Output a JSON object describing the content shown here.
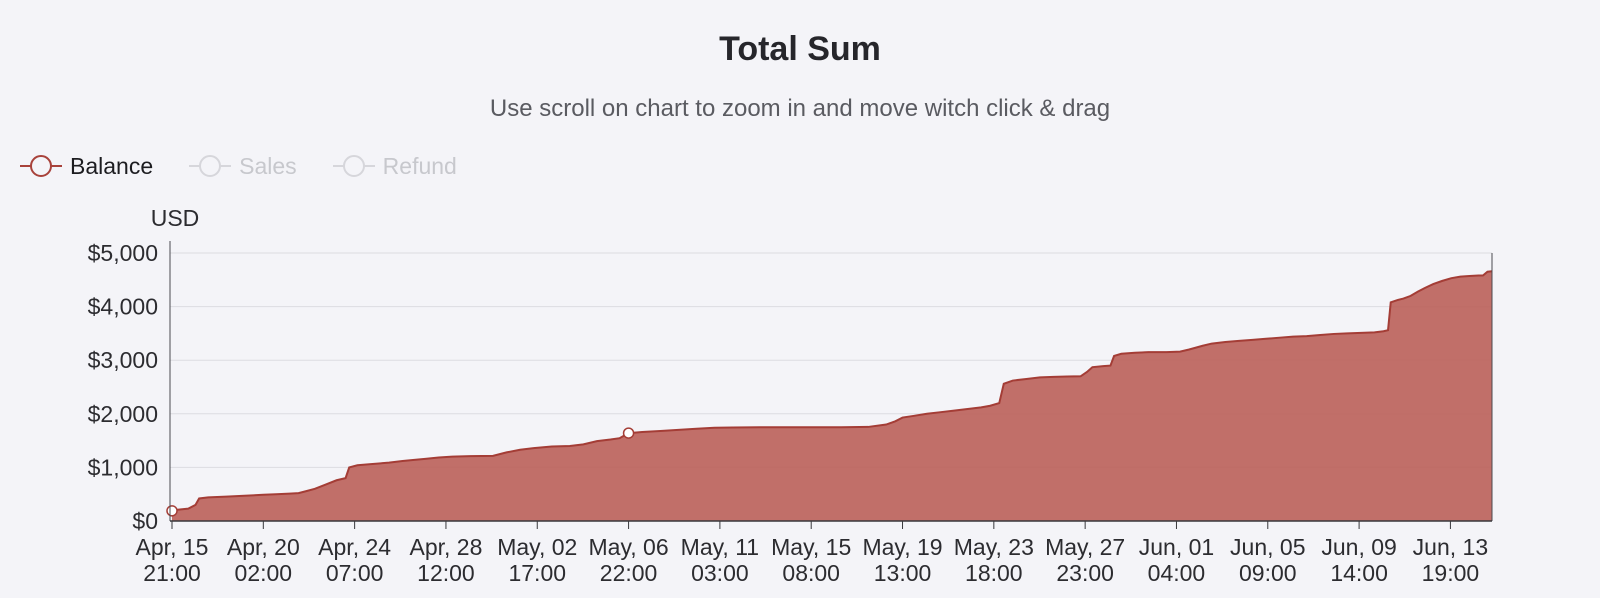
{
  "title": "Total Sum",
  "subtitle": "Use scroll on chart to zoom in and move witch click & drag",
  "legend": {
    "items": [
      {
        "label": "Balance",
        "active": true
      },
      {
        "label": "Sales",
        "active": false
      },
      {
        "label": "Refund",
        "active": false
      }
    ],
    "active_marker_color": "#a8423b",
    "inactive_marker_color": "#d6d6db",
    "marker_fill": "#f4f4f8"
  },
  "axis": {
    "y_title": "USD"
  },
  "colors": {
    "background": "#f4f4f8",
    "area_fill": "#bc635c",
    "line_stroke": "#a43d36",
    "grid": "#dcdce1",
    "axis_line": "#4a4a4f",
    "tick_text": "#2c2c30",
    "marker_fill": "#ffffff"
  },
  "chart_data": {
    "type": "area",
    "title": "Total Sum",
    "xlabel": "",
    "ylabel": "USD",
    "ylim": [
      0,
      5000
    ],
    "xlim_hours": [
      0,
      1460
    ],
    "grid": "horizontal",
    "legend_position": "top-left",
    "y_ticks": [
      {
        "value": 0,
        "label": "$0"
      },
      {
        "value": 1000,
        "label": "$1,000"
      },
      {
        "value": 2000,
        "label": "$2,000"
      },
      {
        "value": 3000,
        "label": "$3,000"
      },
      {
        "value": 4000,
        "label": "$4,000"
      },
      {
        "value": 5000,
        "label": "$5,000"
      }
    ],
    "x_ticks": [
      {
        "hour": 0,
        "label": "Apr, 15",
        "sub": "21:00"
      },
      {
        "hour": 101,
        "label": "Apr, 20",
        "sub": "02:00"
      },
      {
        "hour": 202,
        "label": "Apr, 24",
        "sub": "07:00"
      },
      {
        "hour": 303,
        "label": "Apr, 28",
        "sub": "12:00"
      },
      {
        "hour": 404,
        "label": "May, 02",
        "sub": "17:00"
      },
      {
        "hour": 505,
        "label": "May, 06",
        "sub": "22:00"
      },
      {
        "hour": 606,
        "label": "May, 11",
        "sub": "03:00"
      },
      {
        "hour": 707,
        "label": "May, 15",
        "sub": "08:00"
      },
      {
        "hour": 808,
        "label": "May, 19",
        "sub": "13:00"
      },
      {
        "hour": 909,
        "label": "May, 23",
        "sub": "18:00"
      },
      {
        "hour": 1010,
        "label": "May, 27",
        "sub": "23:00"
      },
      {
        "hour": 1111,
        "label": "Jun, 01",
        "sub": "04:00"
      },
      {
        "hour": 1212,
        "label": "Jun, 05",
        "sub": "09:00"
      },
      {
        "hour": 1313,
        "label": "Jun, 09",
        "sub": "14:00"
      },
      {
        "hour": 1414,
        "label": "Jun, 13",
        "sub": "19:00"
      }
    ],
    "series": [
      {
        "name": "Balance",
        "unit": "USD",
        "points": [
          [
            0,
            190
          ],
          [
            6,
            210
          ],
          [
            18,
            230
          ],
          [
            26,
            300
          ],
          [
            30,
            420
          ],
          [
            40,
            440
          ],
          [
            60,
            455
          ],
          [
            80,
            470
          ],
          [
            101,
            490
          ],
          [
            115,
            500
          ],
          [
            130,
            510
          ],
          [
            140,
            520
          ],
          [
            148,
            555
          ],
          [
            158,
            600
          ],
          [
            170,
            680
          ],
          [
            182,
            760
          ],
          [
            192,
            800
          ],
          [
            196,
            1000
          ],
          [
            205,
            1040
          ],
          [
            220,
            1060
          ],
          [
            240,
            1090
          ],
          [
            255,
            1120
          ],
          [
            268,
            1140
          ],
          [
            280,
            1160
          ],
          [
            295,
            1185
          ],
          [
            310,
            1200
          ],
          [
            330,
            1210
          ],
          [
            355,
            1215
          ],
          [
            370,
            1280
          ],
          [
            385,
            1330
          ],
          [
            400,
            1360
          ],
          [
            420,
            1390
          ],
          [
            440,
            1400
          ],
          [
            455,
            1430
          ],
          [
            470,
            1490
          ],
          [
            485,
            1520
          ],
          [
            495,
            1545
          ],
          [
            505,
            1640
          ],
          [
            520,
            1660
          ],
          [
            540,
            1680
          ],
          [
            560,
            1700
          ],
          [
            580,
            1720
          ],
          [
            600,
            1740
          ],
          [
            620,
            1745
          ],
          [
            650,
            1750
          ],
          [
            700,
            1750
          ],
          [
            740,
            1750
          ],
          [
            770,
            1755
          ],
          [
            790,
            1800
          ],
          [
            800,
            1860
          ],
          [
            808,
            1930
          ],
          [
            820,
            1960
          ],
          [
            835,
            2000
          ],
          [
            850,
            2030
          ],
          [
            865,
            2060
          ],
          [
            880,
            2090
          ],
          [
            895,
            2120
          ],
          [
            905,
            2150
          ],
          [
            915,
            2200
          ],
          [
            920,
            2560
          ],
          [
            930,
            2620
          ],
          [
            945,
            2650
          ],
          [
            960,
            2680
          ],
          [
            975,
            2690
          ],
          [
            990,
            2695
          ],
          [
            1005,
            2700
          ],
          [
            1012,
            2780
          ],
          [
            1018,
            2870
          ],
          [
            1030,
            2890
          ],
          [
            1038,
            2900
          ],
          [
            1042,
            3080
          ],
          [
            1050,
            3120
          ],
          [
            1065,
            3140
          ],
          [
            1080,
            3150
          ],
          [
            1100,
            3150
          ],
          [
            1115,
            3160
          ],
          [
            1125,
            3200
          ],
          [
            1140,
            3270
          ],
          [
            1150,
            3310
          ],
          [
            1165,
            3340
          ],
          [
            1180,
            3360
          ],
          [
            1195,
            3380
          ],
          [
            1210,
            3400
          ],
          [
            1225,
            3420
          ],
          [
            1240,
            3440
          ],
          [
            1255,
            3450
          ],
          [
            1270,
            3470
          ],
          [
            1285,
            3490
          ],
          [
            1300,
            3500
          ],
          [
            1315,
            3510
          ],
          [
            1330,
            3520
          ],
          [
            1340,
            3540
          ],
          [
            1345,
            3560
          ],
          [
            1348,
            4080
          ],
          [
            1355,
            4120
          ],
          [
            1362,
            4150
          ],
          [
            1370,
            4200
          ],
          [
            1378,
            4280
          ],
          [
            1386,
            4350
          ],
          [
            1395,
            4420
          ],
          [
            1405,
            4480
          ],
          [
            1415,
            4530
          ],
          [
            1425,
            4560
          ],
          [
            1435,
            4570
          ],
          [
            1445,
            4580
          ],
          [
            1450,
            4580
          ],
          [
            1455,
            4650
          ],
          [
            1460,
            4660
          ]
        ],
        "markers": [
          [
            0,
            190
          ],
          [
            505,
            1640
          ]
        ]
      }
    ]
  }
}
